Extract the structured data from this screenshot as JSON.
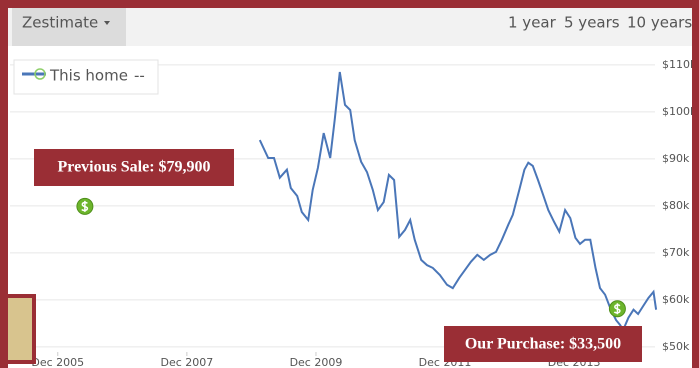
{
  "toolbar": {
    "dropdown": "Zestimate",
    "ranges": [
      "1 year",
      "5 years",
      "10 years"
    ],
    "selected": 2
  },
  "chart_data": {
    "type": "line",
    "x": [
      2009.05,
      2009.18,
      2009.27,
      2009.36,
      2009.47,
      2009.53,
      2009.63,
      2009.7,
      2009.8,
      2009.87,
      2009.95,
      2010.04,
      2010.14,
      2010.21,
      2010.29,
      2010.37,
      2010.45,
      2010.52,
      2010.62,
      2010.71,
      2010.8,
      2010.88,
      2010.97,
      2011.05,
      2011.13,
      2011.21,
      2011.3,
      2011.38,
      2011.45,
      2011.55,
      2011.64,
      2011.73,
      2011.84,
      2011.95,
      2012.04,
      2012.14,
      2012.23,
      2012.32,
      2012.42,
      2012.52,
      2012.62,
      2012.71,
      2012.8,
      2012.9,
      2012.97,
      2013.07,
      2013.15,
      2013.21,
      2013.28,
      2013.36,
      2013.44,
      2013.52,
      2013.61,
      2013.69,
      2013.78,
      2013.86,
      2013.94,
      2014.01,
      2014.09,
      2014.17,
      2014.25,
      2014.32,
      2014.4,
      2014.49,
      2014.57,
      2014.63,
      2014.68,
      2014.76,
      2014.84,
      2014.91,
      2014.99,
      2015.07,
      2015.15,
      2015.19
    ],
    "series": [
      {
        "name": "This home",
        "legend_value": "--",
        "color": "#4a76b8",
        "values": [
          94000,
          90200,
          90200,
          86000,
          87700,
          83800,
          82100,
          78700,
          77000,
          83400,
          88100,
          95500,
          90200,
          98300,
          108500,
          101500,
          100400,
          94000,
          89400,
          87200,
          83400,
          79100,
          80800,
          86600,
          85500,
          73400,
          74900,
          77000,
          72800,
          68500,
          67400,
          66800,
          65300,
          63200,
          62500,
          64700,
          66400,
          68100,
          69600,
          68500,
          69600,
          70200,
          72800,
          76000,
          78100,
          83400,
          87700,
          89200,
          88500,
          85500,
          82300,
          79100,
          76600,
          74500,
          79100,
          77400,
          73200,
          71900,
          72800,
          72800,
          66800,
          62500,
          61100,
          57900,
          55700,
          54700,
          53600,
          56200,
          57900,
          57000,
          58700,
          60400,
          61700,
          57900
        ]
      }
    ],
    "sale_markers": {
      "x": [
        2006.34,
        2014.59
      ],
      "values": [
        79900,
        58100
      ],
      "color": "#6db52c"
    },
    "xlim": [
      2005.18,
      2015.25
    ],
    "xticks": [
      {
        "value": 2005.92,
        "label": "Dec 2005"
      },
      {
        "value": 2007.92,
        "label": "Dec 2007"
      },
      {
        "value": 2009.92,
        "label": "Dec 2009"
      },
      {
        "value": 2011.92,
        "label": "Dec 2011"
      },
      {
        "value": 2013.92,
        "label": "Dec 2013"
      }
    ],
    "ylim": [
      45500,
      113600
    ],
    "yticks": [
      {
        "value": 50000,
        "label": "$50k"
      },
      {
        "value": 60000,
        "label": "$60k"
      },
      {
        "value": 70000,
        "label": "$70k"
      },
      {
        "value": 80000,
        "label": "$80k"
      },
      {
        "value": 90000,
        "label": "$90k"
      },
      {
        "value": 100000,
        "label": "$100k"
      },
      {
        "value": 110000,
        "label": "$110k"
      }
    ],
    "grid": true,
    "annotations": [
      "Previous Sale: $79,900",
      "Our Purchase: $33,500"
    ]
  }
}
